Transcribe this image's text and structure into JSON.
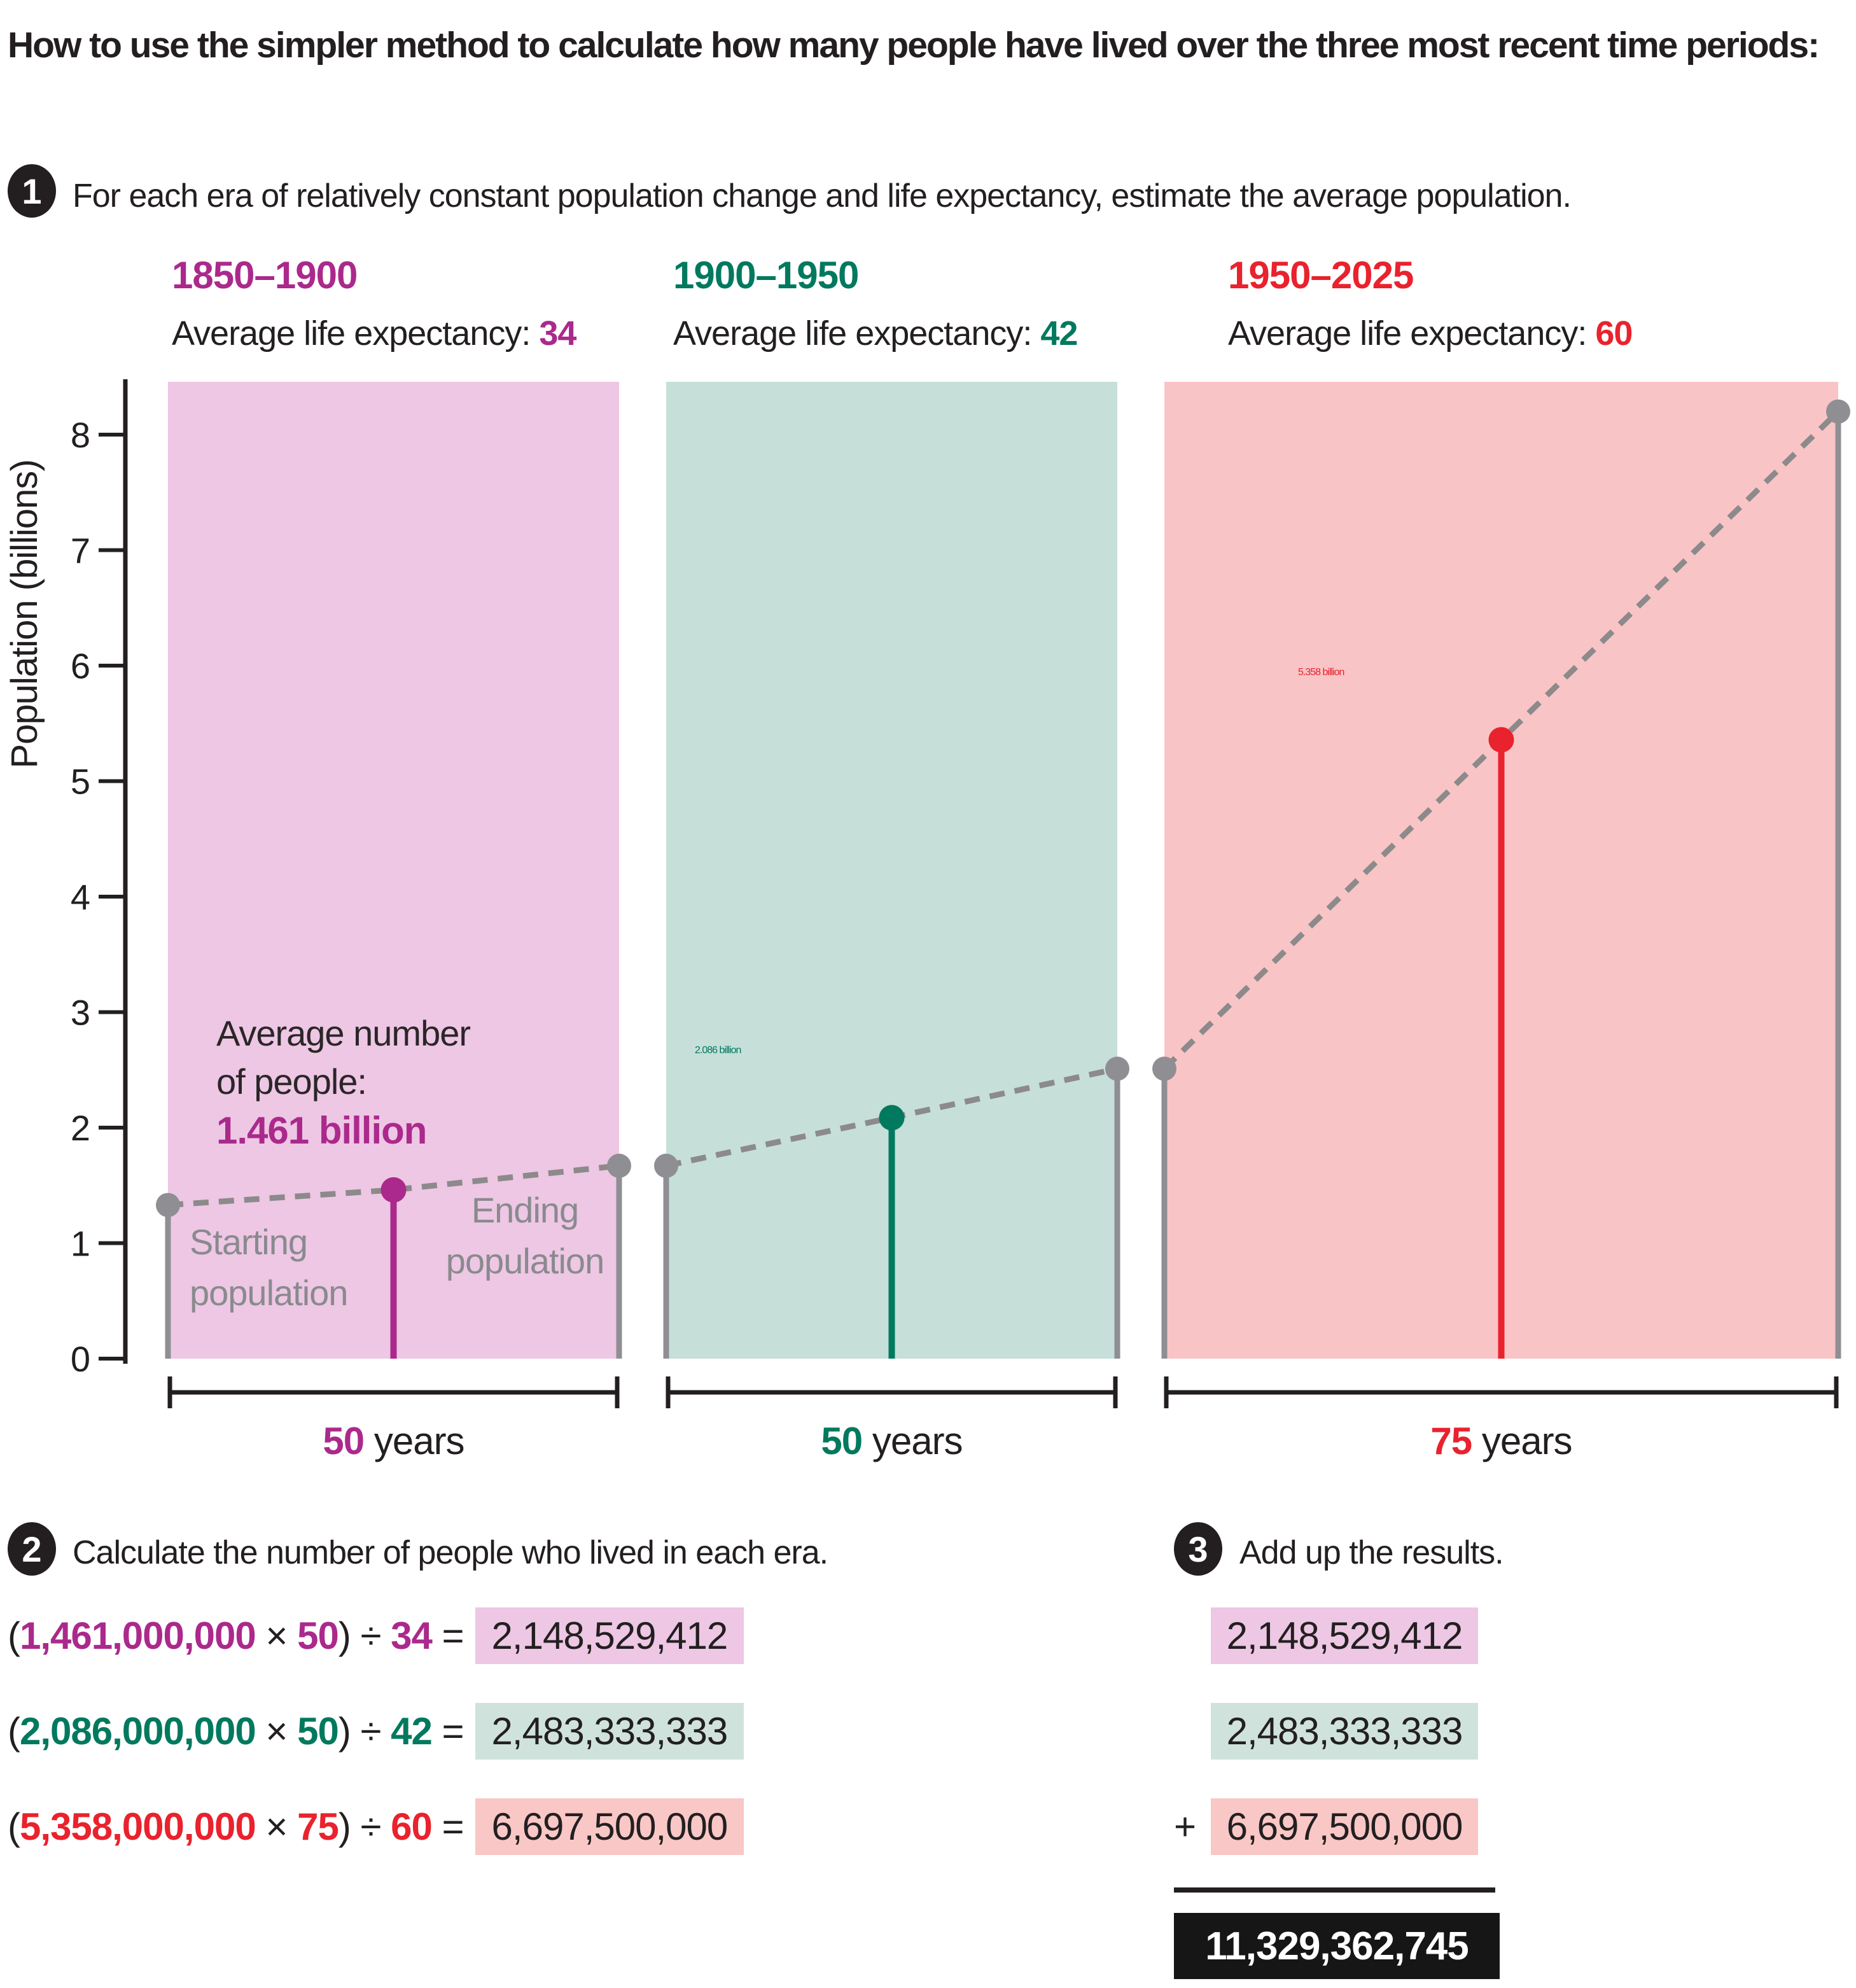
{
  "title": "How to use the simpler method to calculate how many people have lived over the three most recent time periods:",
  "step1": {
    "badge": "1",
    "text": "For each era of relatively constant population change and life expectancy, estimate the average population."
  },
  "step2": {
    "badge": "2",
    "text": "Calculate the number of people who lived in each era."
  },
  "step3": {
    "badge": "3",
    "text": "Add up the results."
  },
  "colors": {
    "magenta": "#ab298c",
    "teal": "#00795e",
    "red": "#e9222d",
    "gray": "#8f8f93",
    "black": "#231f20",
    "panel_pink": "#edc7e4",
    "panel_teal": "#c6dfd9",
    "panel_red": "#f9c4c6"
  },
  "chart_data": {
    "type": "line",
    "ylabel": "Population (billions)",
    "yticks": [
      0,
      1,
      2,
      3,
      4,
      5,
      6,
      7,
      8
    ],
    "ylim": [
      0,
      8.5
    ],
    "grid": false,
    "legend": "none",
    "eras": [
      {
        "period": "1850–1900",
        "life_label": "Average life expectancy:",
        "life_expectancy": "34",
        "duration": "50",
        "duration_unit": "years",
        "start_billions": 1.33,
        "avg_billions": 1.461,
        "end_billions": 1.67,
        "avg_text_lines": [
          "Average number",
          "of people:"
        ],
        "avg_value_text": "1.461 billion",
        "accent": "#ab298c",
        "fill": "#edc7e4"
      },
      {
        "period": "1900–1950",
        "life_label": "Average life expectancy:",
        "life_expectancy": "42",
        "duration": "50",
        "duration_unit": "years",
        "start_billions": 1.67,
        "avg_billions": 2.086,
        "end_billions": 2.51,
        "avg_text_lines": [],
        "avg_value_text": "2.086 billion",
        "accent": "#00795e",
        "fill": "#c6dfd9"
      },
      {
        "period": "1950–2025",
        "life_label": "Average life expectancy:",
        "life_expectancy": "60",
        "duration": "75",
        "duration_unit": "years",
        "start_billions": 2.51,
        "avg_billions": 5.358,
        "end_billions": 8.2,
        "avg_text_lines": [],
        "avg_value_text": "5.358 billion",
        "accent": "#e9222d",
        "fill": "#f9c4c6"
      }
    ],
    "annotations": {
      "starting_lines": [
        "Starting",
        "population"
      ],
      "ending_lines": [
        "Ending",
        "population"
      ]
    }
  },
  "equations": [
    {
      "open": "(",
      "population": "1,461,000,000",
      "times": "×",
      "duration": "50",
      "close": ")",
      "divide": "÷",
      "life_expectancy": "34",
      "equals": "=",
      "result": "2,148,529,412",
      "accent": "#ab298c",
      "highlight": "#edc7e4"
    },
    {
      "open": "(",
      "population": "2,086,000,000",
      "times": "×",
      "duration": "50",
      "close": ")",
      "divide": "÷",
      "life_expectancy": "42",
      "equals": "=",
      "result": "2,483,333,333",
      "accent": "#00795e",
      "highlight": "#cfe3dc"
    },
    {
      "open": "(",
      "population": "5,358,000,000",
      "times": "×",
      "duration": "75",
      "close": ")",
      "divide": "÷",
      "life_expectancy": "60",
      "equals": "=",
      "result": "6,697,500,000",
      "accent": "#e9222d",
      "highlight": "#f8c7c6"
    }
  ],
  "sum": {
    "addends": [
      {
        "operator": "",
        "value": "2,148,529,412",
        "highlight": "#edc7e4"
      },
      {
        "operator": "",
        "value": "2,483,333,333",
        "highlight": "#cfe3dc"
      },
      {
        "operator": "+",
        "value": "6,697,500,000",
        "highlight": "#f8c7c6"
      }
    ],
    "total": "11,329,362,745"
  }
}
